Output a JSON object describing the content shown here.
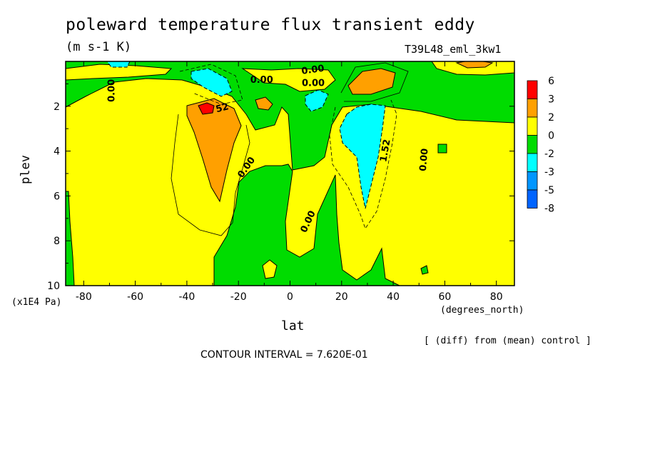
{
  "chart_data": {
    "type": "heatmap",
    "title": "poleward temperature flux transient eddy",
    "units": "(m s-1 K)",
    "run_label": "T39L48_eml_3kw1",
    "xlabel": "lat",
    "x_unit": "(degrees_north)",
    "ylabel": "plev",
    "y_unit": "(x1E4 Pa)",
    "xlim": [
      -87,
      87
    ],
    "ylim": [
      0,
      10
    ],
    "y_inverted": true,
    "x_ticks": [
      "-80",
      "-60",
      "-40",
      "-20",
      "0",
      "20",
      "40",
      "60",
      "80"
    ],
    "y_ticks": [
      "2",
      "4",
      "6",
      "8",
      "10"
    ],
    "note": "[ (diff) from (mean) control ]",
    "contour_interval": "CONTOUR INTERVAL = 7.620E-01",
    "contour_labels": [
      {
        "text": "0.00",
        "lon": -68,
        "plev": 1.3,
        "rot": -90
      },
      {
        "text": "0.00",
        "lon": -11,
        "plev": 0.95,
        "rot": 0
      },
      {
        "text": "0.00",
        "lon": 9,
        "plev": 0.5,
        "rot": -8
      },
      {
        "text": "0.00",
        "lon": 9,
        "plev": 1.1,
        "rot": 0
      },
      {
        "text": "52",
        "lon": -26,
        "plev": 2.2,
        "rot": -15
      },
      {
        "text": "0.00",
        "lon": -16,
        "plev": 4.8,
        "rot": -55
      },
      {
        "text": "0.00",
        "lon": 8,
        "plev": 7.2,
        "rot": -65
      },
      {
        "text": "1.52",
        "lon": 38,
        "plev": 4.0,
        "rot": -80
      },
      {
        "text": "0.00",
        "lon": 53,
        "plev": 4.4,
        "rot": -85
      }
    ],
    "legend": {
      "position": "right",
      "levels": [
        "6",
        "3",
        "2",
        "0",
        "-2",
        "-3",
        "-5",
        "-8"
      ],
      "colors": [
        "#ff0000",
        "#ffa000",
        "#ffff00",
        "#00dc00",
        "#00ffff",
        "#0096ff",
        "#0064ff"
      ]
    }
  },
  "colors": {
    "red": "#ff0000",
    "orange": "#ffa000",
    "yellow": "#ffff00",
    "green": "#00dc00",
    "cyan": "#00ffff",
    "blue": "#0096ff",
    "darkblue": "#0064ff"
  }
}
